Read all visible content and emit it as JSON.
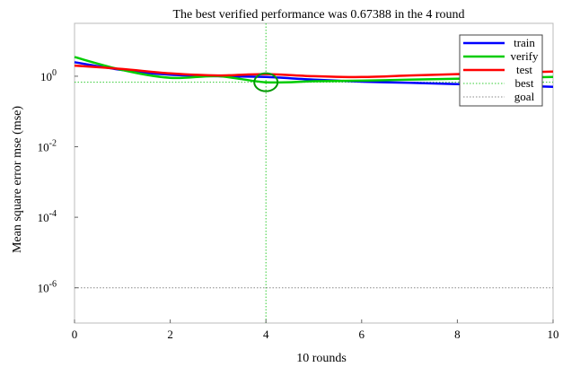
{
  "chart_data": {
    "type": "line",
    "title": "The best verified performance was 0.67388 in the 4 round",
    "xlabel": "10 rounds",
    "ylabel": "Mean square error mse (mse)",
    "xlim": [
      0,
      10
    ],
    "ylim_log10": [
      -7,
      1.5
    ],
    "y_scale": "log",
    "grid": false,
    "legend_placement": "top-right",
    "x_ticks": [
      0,
      2,
      4,
      6,
      8,
      10
    ],
    "y_ticks": [
      {
        "exp": 0,
        "base": "10",
        "sup": "0"
      },
      {
        "exp": -2,
        "base": "10",
        "sup": "-2"
      },
      {
        "exp": -4,
        "base": "10",
        "sup": "-4"
      },
      {
        "exp": -6,
        "base": "10",
        "sup": "-6"
      }
    ],
    "x": [
      0,
      1,
      2,
      3,
      4,
      5,
      6,
      7,
      8,
      9,
      10
    ],
    "series": [
      {
        "name": "train",
        "color": "#0000ff",
        "values": [
          2.5,
          1.5,
          1.1,
          1.0,
          0.95,
          0.8,
          0.7,
          0.65,
          0.6,
          0.55,
          0.5
        ]
      },
      {
        "name": "verify",
        "color": "#00cc00",
        "values": [
          3.5,
          1.5,
          0.9,
          1.0,
          0.67388,
          0.72,
          0.75,
          0.8,
          0.85,
          0.9,
          0.95
        ]
      },
      {
        "name": "test",
        "color": "#ff0000",
        "values": [
          2.0,
          1.6,
          1.2,
          1.05,
          1.15,
          1.0,
          0.95,
          1.05,
          1.15,
          1.25,
          1.35
        ]
      }
    ],
    "best": {
      "name": "best",
      "x": 4,
      "y": 0.67388,
      "color": "#33cc33"
    },
    "goal": {
      "name": "goal",
      "y": 1e-06,
      "color": "#aaaaaa"
    }
  }
}
